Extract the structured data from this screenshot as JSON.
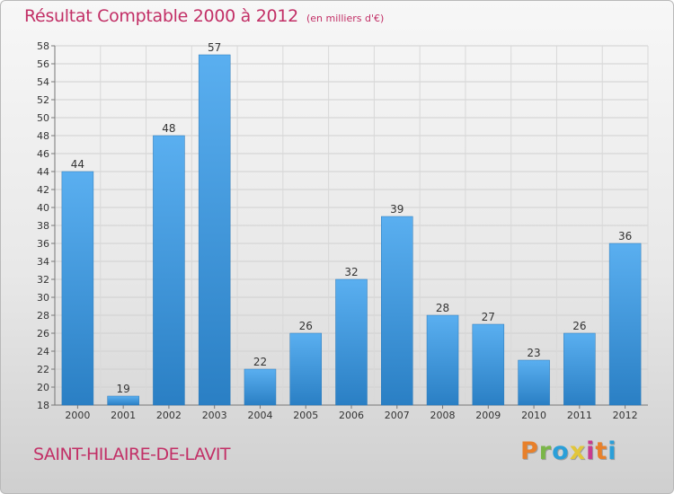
{
  "header": {
    "title": "Résultat Comptable 2000 à 2012",
    "subtitle": "(en milliers d'€)"
  },
  "footer": {
    "commune": "SAINT-HILAIRE-DE-LAVIT",
    "logo": "Proxiti",
    "logo_colors": [
      "#e8802a",
      "#7ab648",
      "#2b9fd8",
      "#e2c63a",
      "#c83a8f",
      "#e8802a",
      "#2b9fd8"
    ]
  },
  "chart_data": {
    "type": "bar",
    "title": "Résultat Comptable 2000 à 2012",
    "subtitle": "(en milliers d'€)",
    "xlabel": "",
    "ylabel": "",
    "categories": [
      "2000",
      "2001",
      "2002",
      "2003",
      "2004",
      "2005",
      "2006",
      "2007",
      "2008",
      "2009",
      "2010",
      "2011",
      "2012"
    ],
    "values": [
      44,
      19,
      48,
      57,
      22,
      26,
      32,
      39,
      28,
      27,
      23,
      26,
      36
    ],
    "ylim": [
      18,
      58
    ],
    "yticks": [
      18,
      20,
      22,
      24,
      26,
      28,
      30,
      32,
      34,
      36,
      38,
      40,
      42,
      44,
      46,
      48,
      50,
      52,
      54,
      56,
      58
    ],
    "grid": true,
    "bar_color_top": "#5aaff0",
    "bar_color_bottom": "#2a7fc4"
  }
}
